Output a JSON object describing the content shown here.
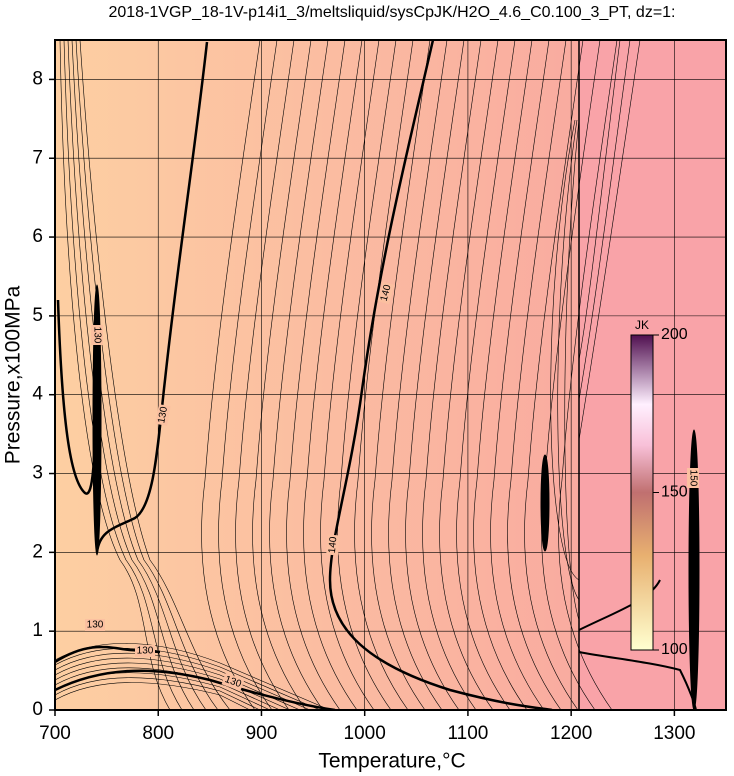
{
  "chart_data": {
    "type": "contour",
    "title": "2018-1VGP_18-1V-p14i1_3/meltsliquid/sysCpJK/H2O_4.6_C0.100_3_PT, dz=1:",
    "x_label": "Temperature,°C",
    "y_label": "Pressure,x100MPa",
    "xlim": [
      700,
      1350
    ],
    "ylim": [
      0,
      8.5
    ],
    "xticks": [
      700,
      800,
      900,
      1000,
      1100,
      1200,
      1300
    ],
    "yticks": [
      0,
      1,
      2,
      3,
      4,
      5,
      6,
      7,
      8
    ],
    "grid": true,
    "contour_levels": [
      130,
      130,
      130,
      130,
      130,
      140,
      140,
      150
    ],
    "colorbar": {
      "label": "JK",
      "clim": [
        100,
        200
      ],
      "ticks": [
        100,
        150,
        200
      ]
    }
  }
}
